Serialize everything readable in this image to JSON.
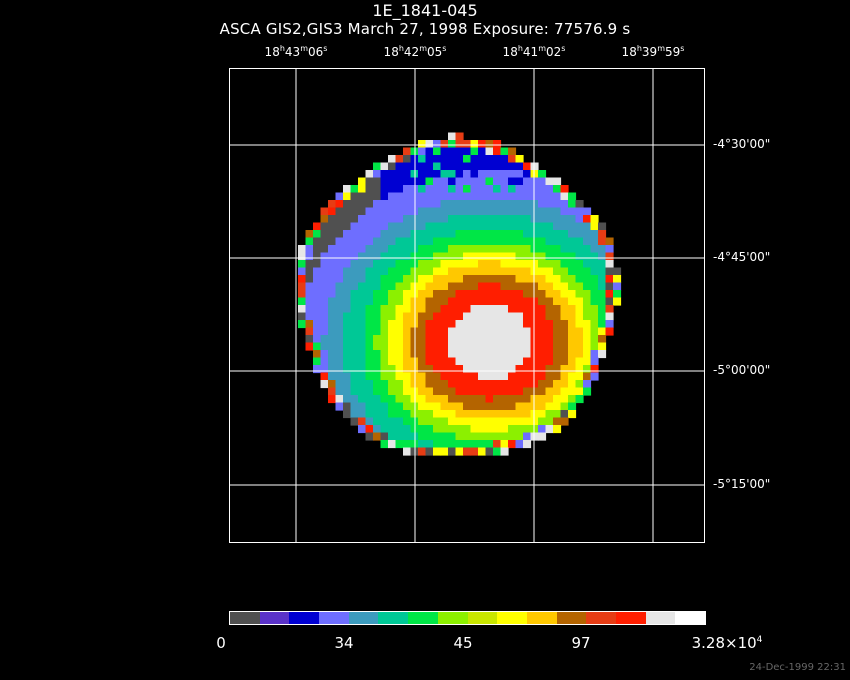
{
  "title": "1E_1841-045",
  "subtitle": "ASCA GIS2,GIS3 March 27, 1998 Exposure: 77576.9 s",
  "ra_ticks": [
    {
      "h": "18",
      "m": "43",
      "s": "06"
    },
    {
      "h": "18",
      "m": "42",
      "s": "05"
    },
    {
      "h": "18",
      "m": "41",
      "s": "02"
    },
    {
      "h": "18",
      "m": "39",
      "s": "59"
    }
  ],
  "dec_ticks": [
    "-4°30'00\"",
    "-4°45'00\"",
    "-5°00'00\"",
    "-5°15'00\""
  ],
  "colorbar": {
    "colors": [
      "#505050",
      "#5a32c8",
      "#0000d2",
      "#6e6eff",
      "#3c9bbe",
      "#00c896",
      "#00e646",
      "#8cf000",
      "#c8e600",
      "#ffff00",
      "#ffc800",
      "#b46400",
      "#e63c14",
      "#ff1e00",
      "#e6e6e6",
      "#ffffff"
    ],
    "labels": [
      "0",
      "34",
      "45",
      "97"
    ],
    "max_label": {
      "mantissa": "3.28×10",
      "exponent": "4"
    }
  },
  "timestamp": "24-Dec-1999 22:31"
}
